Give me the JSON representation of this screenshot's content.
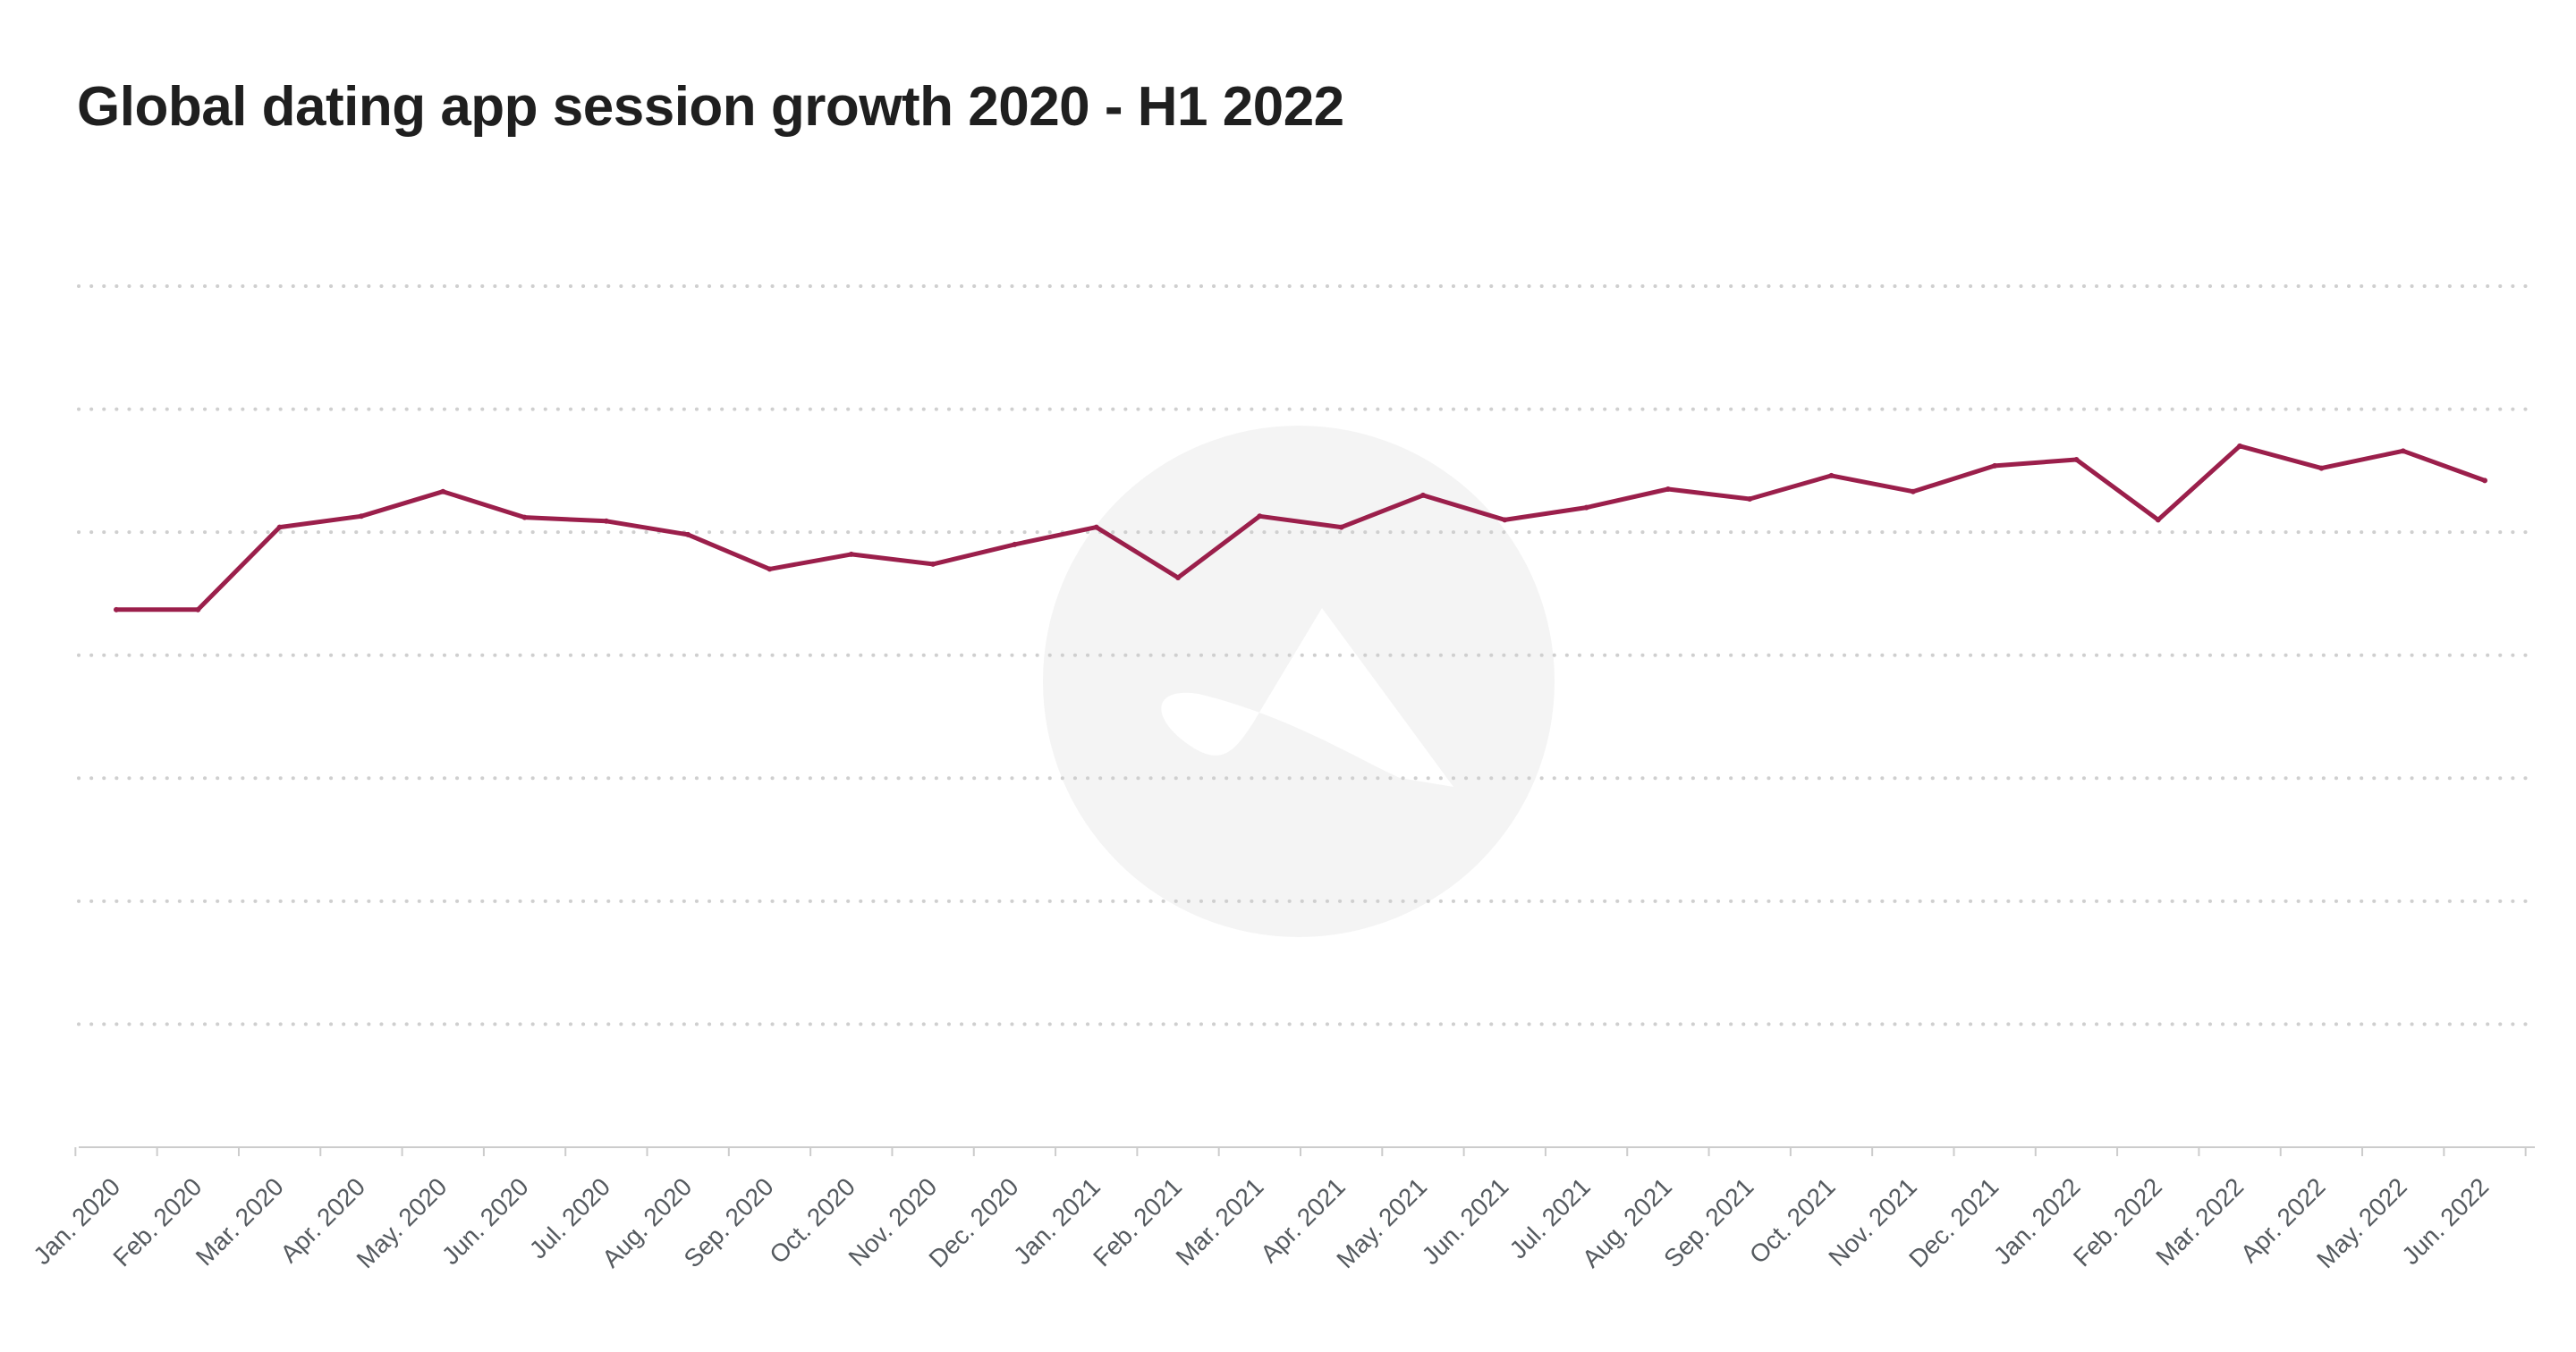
{
  "title": "Global dating app session growth 2020 - H1 2022",
  "colors": {
    "line": "#9b1f4b",
    "grid": "#cfcfcf",
    "axis": "#cccccc",
    "watermark": "#f4f4f4",
    "text": "#1f1f1f",
    "tick_text": "#555a5f"
  },
  "chart_data": {
    "type": "line",
    "title": "Global dating app session growth 2020 - H1 2022",
    "xlabel": "",
    "ylabel": "",
    "grid": true,
    "legend": "none",
    "ylim": [
      0,
      7
    ],
    "categories": [
      "Jan. 2020",
      "Feb. 2020",
      "Mar. 2020",
      "Apr. 2020",
      "May. 2020",
      "Jun. 2020",
      "Jul. 2020",
      "Aug. 2020",
      "Sep. 2020",
      "Oct. 2020",
      "Nov. 2020",
      "Dec. 2020",
      "Jan. 2021",
      "Feb. 2021",
      "Mar. 2021",
      "Apr. 2021",
      "May. 2021",
      "Jun. 2021",
      "Jul. 2021",
      "Aug. 2021",
      "Sep. 2021",
      "Oct. 2021",
      "Nov. 2021",
      "Dec. 2021",
      "Jan. 2022",
      "Feb. 2022",
      "Mar. 2022",
      "Apr. 2022",
      "May. 2022",
      "Jun. 2022"
    ],
    "series": [
      {
        "values": [
          4.37,
          4.37,
          5.04,
          5.13,
          5.33,
          5.12,
          5.09,
          4.98,
          4.7,
          4.82,
          4.74,
          4.9,
          5.04,
          4.63,
          5.13,
          5.04,
          5.3,
          5.1,
          5.2,
          5.35,
          5.27,
          5.46,
          5.33,
          5.54,
          5.59,
          5.1,
          5.7,
          5.52,
          5.66,
          5.42
        ]
      }
    ]
  }
}
